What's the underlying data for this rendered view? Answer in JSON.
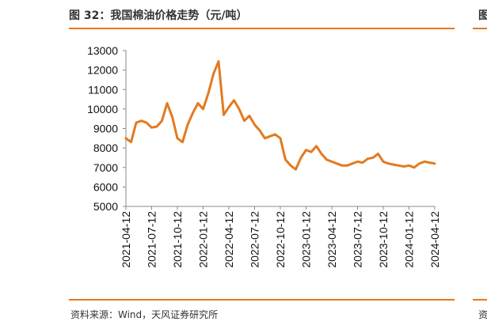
{
  "header": {
    "title": "图 32：我国棉油价格走势（元/吨）",
    "next_panel_title_fragment": "图"
  },
  "footer": {
    "source": "资料来源：Wind，天风证券研究所",
    "next_panel_source_fragment": "资"
  },
  "colors": {
    "line": "#e37a1f",
    "rule": "#e37a1f",
    "axis": "#888888"
  },
  "chart_data": {
    "type": "line",
    "title": "我国棉油价格走势（元/吨）",
    "xlabel": "",
    "ylabel": "",
    "ylim": [
      5000,
      13000
    ],
    "yticks": [
      5000,
      6000,
      7000,
      8000,
      9000,
      10000,
      11000,
      12000,
      13000
    ],
    "xticks": [
      "2021-04-12",
      "2021-07-12",
      "2021-10-12",
      "2022-01-12",
      "2022-04-12",
      "2022-07-12",
      "2022-10-12",
      "2023-01-12",
      "2023-04-12",
      "2023-07-12",
      "2023-10-12",
      "2024-01-12",
      "2024-04-12"
    ],
    "series": [
      {
        "name": "棉油价格",
        "x": [
          0,
          0.2,
          0.4,
          0.6,
          0.8,
          1.0,
          1.2,
          1.4,
          1.6,
          1.8,
          2.0,
          2.2,
          2.4,
          2.6,
          2.8,
          3.0,
          3.2,
          3.4,
          3.6,
          3.8,
          4.0,
          4.2,
          4.4,
          4.6,
          4.8,
          5.0,
          5.2,
          5.4,
          5.6,
          5.8,
          6.0,
          6.2,
          6.4,
          6.6,
          6.8,
          7.0,
          7.2,
          7.4,
          7.6,
          7.8,
          8.0,
          8.2,
          8.4,
          8.6,
          8.8,
          9.0,
          9.2,
          9.4,
          9.6,
          9.8,
          10.0,
          10.2,
          10.4,
          10.6,
          10.8,
          11.0,
          11.2,
          11.4,
          11.6,
          11.8,
          12.0
        ],
        "values": [
          8500,
          8300,
          9300,
          9400,
          9300,
          9050,
          9100,
          9400,
          10300,
          9600,
          8500,
          8300,
          9200,
          9800,
          10300,
          10000,
          10800,
          11800,
          12450,
          9700,
          10100,
          10450,
          10000,
          9400,
          9650,
          9200,
          8900,
          8500,
          8600,
          8700,
          8500,
          7400,
          7100,
          6900,
          7500,
          7900,
          7800,
          8100,
          7700,
          7400,
          7300,
          7200,
          7100,
          7100,
          7200,
          7300,
          7250,
          7450,
          7500,
          7700,
          7300,
          7200,
          7150,
          7100,
          7050,
          7100,
          7000,
          7200,
          7300,
          7250,
          7200
        ]
      }
    ]
  }
}
